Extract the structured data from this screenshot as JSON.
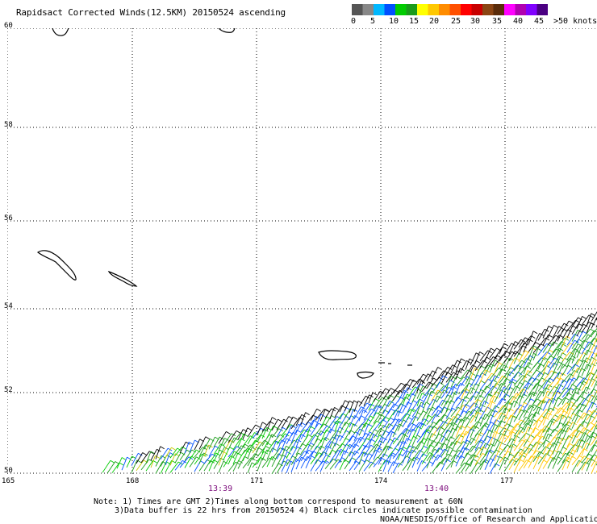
{
  "title": "Rapidsact Corrected Winds(12.5KM) 20150524 ascending",
  "legend": {
    "colors": [
      "#555555",
      "#888888",
      "#00b8ff",
      "#0050ff",
      "#00cc00",
      "#1a9b1a",
      "#ffff00",
      "#ffc800",
      "#ff8c00",
      "#ff5000",
      "#ff0000",
      "#c80000",
      "#8b4513",
      "#5a2c0a",
      "#ff00ff",
      "#b000b0",
      "#8000ff",
      "#4b0082"
    ],
    "labels": [
      "0",
      "5",
      "10",
      "15",
      "20",
      "25",
      "30",
      "35",
      "40",
      "45",
      ">50 knots"
    ]
  },
  "map": {
    "lat_labels": [
      "60",
      "58",
      "56",
      "54",
      "52",
      "50"
    ],
    "lon_labels": [
      "165",
      "168",
      "171",
      "174",
      "177"
    ],
    "time_labels": [
      "13:39",
      "13:40"
    ],
    "grid": true
  },
  "notes": {
    "line1": "Note: 1) Times are GMT 2)Times along bottom correspond to measurement at 60N",
    "line2": "3)Data buffer is 22 hrs from 20150524 4) Black circles indicate possible contamination",
    "credit": "NOAA/NESDIS/Office of Research and Applications"
  }
}
